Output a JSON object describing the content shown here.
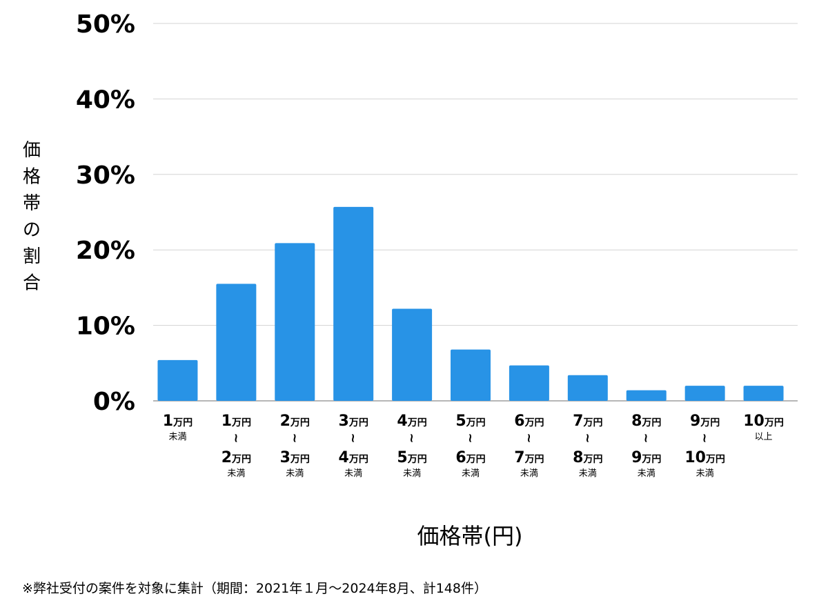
{
  "chart_data": {
    "type": "bar",
    "xlabel": "価格帯(円)",
    "ylabel": "価格帯の割合",
    "ylim": [
      0,
      50
    ],
    "yticks": [
      "0%",
      "10%",
      "20%",
      "30%",
      "40%",
      "50%"
    ],
    "grid": true,
    "color": "#2893e6",
    "categories": [
      {
        "lines": [
          {
            "num": "1",
            "unit": "万円"
          }
        ],
        "note": "未満"
      },
      {
        "lines": [
          {
            "num": "1",
            "unit": "万円"
          },
          {
            "num": "2",
            "unit": "万円"
          }
        ],
        "tilde": "~",
        "note": "未満"
      },
      {
        "lines": [
          {
            "num": "2",
            "unit": "万円"
          },
          {
            "num": "3",
            "unit": "万円"
          }
        ],
        "tilde": "~",
        "note": "未満"
      },
      {
        "lines": [
          {
            "num": "3",
            "unit": "万円"
          },
          {
            "num": "4",
            "unit": "万円"
          }
        ],
        "tilde": "~",
        "note": "未満"
      },
      {
        "lines": [
          {
            "num": "4",
            "unit": "万円"
          },
          {
            "num": "5",
            "unit": "万円"
          }
        ],
        "tilde": "~",
        "note": "未満"
      },
      {
        "lines": [
          {
            "num": "5",
            "unit": "万円"
          },
          {
            "num": "6",
            "unit": "万円"
          }
        ],
        "tilde": "~",
        "note": "未満"
      },
      {
        "lines": [
          {
            "num": "6",
            "unit": "万円"
          },
          {
            "num": "7",
            "unit": "万円"
          }
        ],
        "tilde": "~",
        "note": "未満"
      },
      {
        "lines": [
          {
            "num": "7",
            "unit": "万円"
          },
          {
            "num": "8",
            "unit": "万円"
          }
        ],
        "tilde": "~",
        "note": "未満"
      },
      {
        "lines": [
          {
            "num": "8",
            "unit": "万円"
          },
          {
            "num": "9",
            "unit": "万円"
          }
        ],
        "tilde": "~",
        "note": "未満"
      },
      {
        "lines": [
          {
            "num": "9",
            "unit": "万円"
          },
          {
            "num": "10",
            "unit": "万円"
          }
        ],
        "tilde": "~",
        "note": "未満"
      },
      {
        "lines": [
          {
            "num": "10",
            "unit": "万円"
          }
        ],
        "note": "以上"
      }
    ],
    "values": [
      5.4,
      15.5,
      20.9,
      25.7,
      12.2,
      6.8,
      4.7,
      3.4,
      1.4,
      2.0,
      2.0
    ]
  },
  "footnote": "※弊社受付の案件を対象に集計（期間：2021年１月〜2024年8月、計148件）"
}
